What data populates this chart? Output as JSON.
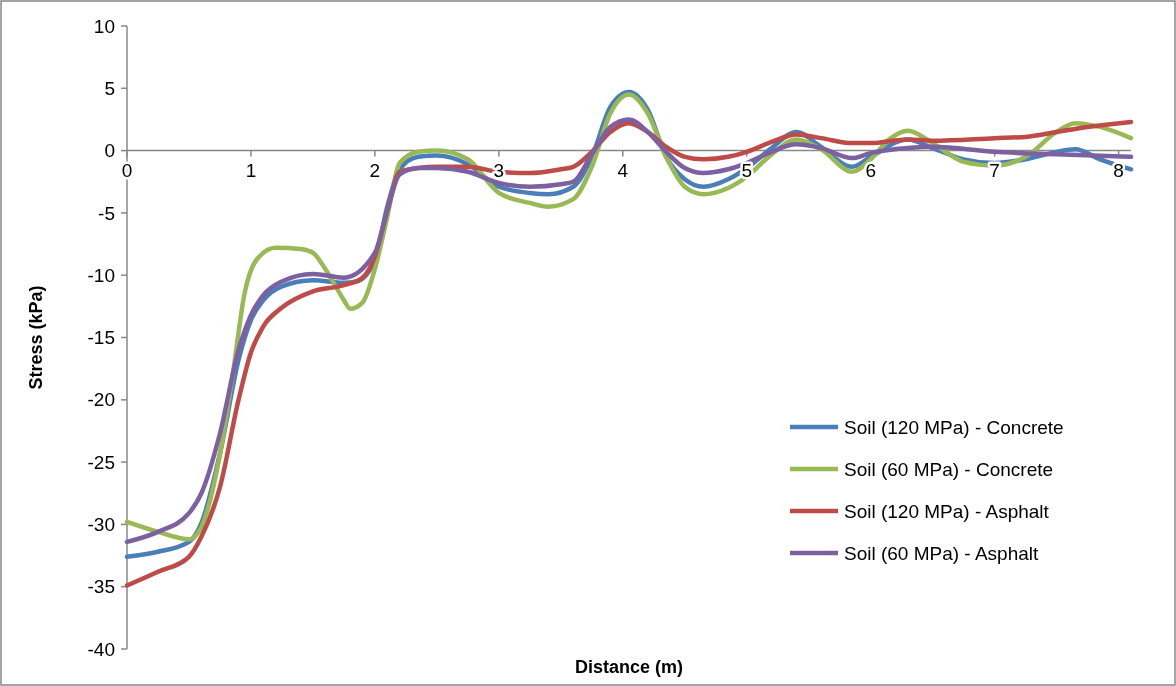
{
  "chart_data": {
    "type": "line",
    "xlabel": "Distance (m)",
    "ylabel": "Stress (kPa)",
    "xlim": [
      0,
      8.1
    ],
    "xticks": [
      0,
      1,
      2,
      3,
      4,
      5,
      6,
      7,
      8
    ],
    "ylim": [
      -40,
      10
    ],
    "yticks": [
      -40,
      -35,
      -30,
      -25,
      -20,
      -15,
      -10,
      -5,
      0,
      5,
      10
    ],
    "grid": false,
    "legend": "right",
    "marker": "none",
    "line_style": "solid",
    "series": [
      {
        "name": "Soil (120 MPa) - Concrete",
        "color": "#4a7ebb",
        "x": [
          0,
          0.25,
          0.5,
          0.6,
          0.75,
          0.9,
          1,
          1.1,
          1.25,
          1.5,
          1.75,
          1.85,
          2,
          2.1,
          2.2,
          2.35,
          2.5,
          2.75,
          3,
          3.25,
          3.4,
          3.6,
          3.75,
          3.9,
          4.05,
          4.2,
          4.35,
          4.5,
          4.65,
          4.85,
          5,
          5.2,
          5.4,
          5.6,
          5.85,
          6,
          6.3,
          6.5,
          6.75,
          7,
          7.25,
          7.5,
          7.65,
          7.85,
          8.1
        ],
        "values": [
          -32.6,
          -32.2,
          -31.4,
          -29.9,
          -24.3,
          -16.8,
          -13.6,
          -12,
          -10.9,
          -10.4,
          -10.6,
          -10.5,
          -8.8,
          -4.5,
          -1.5,
          -0.5,
          -0.4,
          -1.1,
          -2.9,
          -3.4,
          -3.5,
          -2.9,
          -0.5,
          3.5,
          4.7,
          3.3,
          -0.5,
          -2.3,
          -2.9,
          -2.3,
          -1.4,
          0.2,
          1.5,
          0.3,
          -1.3,
          -0.5,
          0.9,
          0.2,
          -0.7,
          -1,
          -0.7,
          -0.1,
          0.1,
          -0.7,
          -1.5
        ]
      },
      {
        "name": "Soil (60 MPa) - Concrete",
        "color": "#98b954",
        "x": [
          0,
          0.25,
          0.5,
          0.6,
          0.75,
          0.85,
          0.95,
          1.05,
          1.2,
          1.4,
          1.5,
          1.6,
          1.75,
          1.8,
          1.9,
          2,
          2.1,
          2.2,
          2.35,
          2.5,
          2.75,
          3,
          3.25,
          3.4,
          3.6,
          3.75,
          3.9,
          4.05,
          4.2,
          4.35,
          4.5,
          4.65,
          4.85,
          5,
          5.2,
          5.4,
          5.6,
          5.85,
          6,
          6.15,
          6.3,
          6.5,
          6.75,
          7,
          7.25,
          7.5,
          7.65,
          7.85,
          8.1
        ],
        "values": [
          -29.8,
          -30.6,
          -31.2,
          -30.2,
          -24.4,
          -18.2,
          -11.4,
          -8.7,
          -7.8,
          -7.9,
          -8.2,
          -9.5,
          -12,
          -12.7,
          -12.2,
          -9.5,
          -5.3,
          -1,
          -0.1,
          0,
          -0.7,
          -3.4,
          -4.2,
          -4.5,
          -3.9,
          -1.3,
          3,
          4.5,
          3,
          -0.5,
          -2.9,
          -3.5,
          -3,
          -2.1,
          -0.3,
          0.9,
          0.1,
          -1.7,
          -0.7,
          0.9,
          1.6,
          0.6,
          -0.9,
          -1.2,
          -0.5,
          1.5,
          2.2,
          1.9,
          1
        ]
      },
      {
        "name": "Soil (120 MPa) - Asphalt",
        "color": "#be4b48",
        "x": [
          0,
          0.25,
          0.5,
          0.6,
          0.75,
          0.9,
          1,
          1.1,
          1.25,
          1.5,
          1.75,
          1.9,
          2,
          2.1,
          2.2,
          2.35,
          2.5,
          2.75,
          3,
          3.25,
          3.5,
          3.6,
          3.75,
          3.9,
          4.05,
          4.2,
          4.35,
          4.5,
          4.65,
          4.85,
          5,
          5.2,
          5.4,
          5.6,
          5.85,
          6,
          6.3,
          6.5,
          7,
          7.25,
          7.5,
          7.75,
          8.1
        ],
        "values": [
          -34.9,
          -33.8,
          -32.6,
          -31,
          -27,
          -20,
          -16.2,
          -14.1,
          -12.6,
          -11.3,
          -10.8,
          -10.2,
          -8.5,
          -4.8,
          -1.7,
          -1.4,
          -1.3,
          -1.3,
          -1.7,
          -1.8,
          -1.5,
          -1.3,
          -0.1,
          1.5,
          2.2,
          1.5,
          0.3,
          -0.5,
          -0.7,
          -0.5,
          -0.1,
          0.7,
          1.3,
          1,
          0.6,
          0.6,
          0.9,
          0.8,
          1,
          1.1,
          1.5,
          1.9,
          2.3
        ]
      },
      {
        "name": "Soil (60 MPa) - Asphalt",
        "color": "#7d60a0",
        "x": [
          0,
          0.25,
          0.5,
          0.6,
          0.75,
          0.9,
          1,
          1.1,
          1.25,
          1.5,
          1.75,
          2,
          2.1,
          2.2,
          2.35,
          2.5,
          2.75,
          3,
          3.25,
          3.5,
          3.6,
          3.75,
          3.9,
          4.05,
          4.2,
          4.35,
          4.5,
          4.65,
          4.85,
          5,
          5.2,
          5.4,
          5.6,
          5.85,
          6,
          6.3,
          6.5,
          7,
          7.5,
          8.1
        ],
        "values": [
          -31.4,
          -30.6,
          -29.1,
          -27.5,
          -22.7,
          -16,
          -13.2,
          -11.6,
          -10.5,
          -9.9,
          -10.2,
          -8.2,
          -4.8,
          -1.9,
          -1.4,
          -1.4,
          -1.7,
          -2.6,
          -2.9,
          -2.7,
          -2.5,
          -0.3,
          1.9,
          2.5,
          1.5,
          -0.1,
          -1.4,
          -1.8,
          -1.5,
          -1,
          -0.1,
          0.5,
          0.2,
          -0.6,
          -0.2,
          0.2,
          0.3,
          -0.1,
          -0.3,
          -0.5
        ]
      }
    ]
  }
}
